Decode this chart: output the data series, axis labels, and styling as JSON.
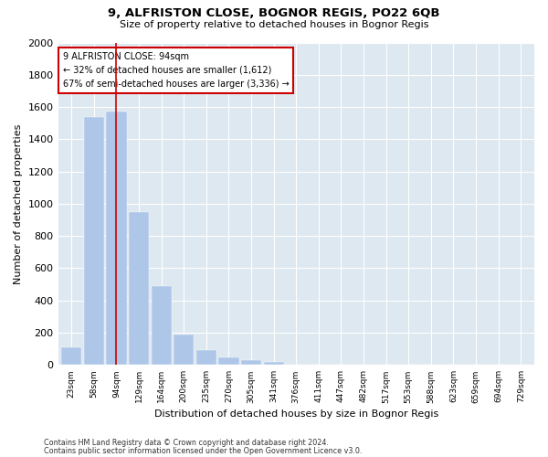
{
  "title1": "9, ALFRISTON CLOSE, BOGNOR REGIS, PO22 6QB",
  "title2": "Size of property relative to detached houses in Bognor Regis",
  "xlabel": "Distribution of detached houses by size in Bognor Regis",
  "ylabel": "Number of detached properties",
  "categories": [
    "23sqm",
    "58sqm",
    "94sqm",
    "129sqm",
    "164sqm",
    "200sqm",
    "235sqm",
    "270sqm",
    "305sqm",
    "341sqm",
    "376sqm",
    "411sqm",
    "447sqm",
    "482sqm",
    "517sqm",
    "553sqm",
    "588sqm",
    "623sqm",
    "659sqm",
    "694sqm",
    "729sqm"
  ],
  "values": [
    110,
    1540,
    1570,
    950,
    490,
    190,
    95,
    45,
    30,
    20,
    0,
    0,
    0,
    0,
    0,
    0,
    0,
    0,
    0,
    0,
    0
  ],
  "subject_bar_index": 2,
  "annotation_line1": "9 ALFRISTON CLOSE: 94sqm",
  "annotation_line2": "← 32% of detached houses are smaller (1,612)",
  "annotation_line3": "67% of semi-detached houses are larger (3,336) →",
  "bar_color": "#aec6e8",
  "subject_line_color": "#cc0000",
  "annotation_box_color": "#cc0000",
  "background_color": "#ffffff",
  "grid_color": "#ffffff",
  "axes_bg_color": "#dde8f0",
  "ylim": [
    0,
    2000
  ],
  "yticks": [
    0,
    200,
    400,
    600,
    800,
    1000,
    1200,
    1400,
    1600,
    1800,
    2000
  ],
  "footer1": "Contains HM Land Registry data © Crown copyright and database right 2024.",
  "footer2": "Contains public sector information licensed under the Open Government Licence v3.0."
}
